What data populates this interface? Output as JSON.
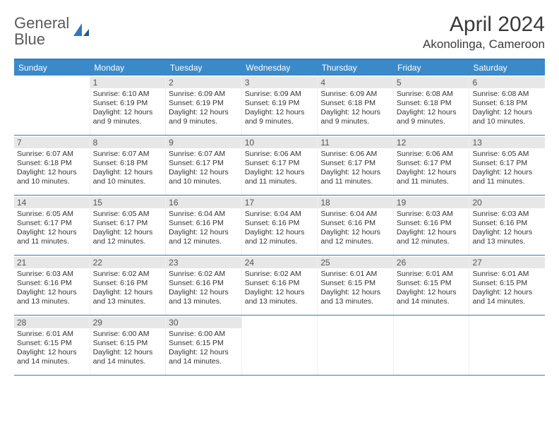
{
  "logo": {
    "text1": "General",
    "text2": "Blue"
  },
  "title": "April 2024",
  "location": "Akonolinga, Cameroon",
  "colors": {
    "header_bar": "#3a8ac9",
    "rule": "#2f78c4",
    "daynum_bg": "#e7e7e7",
    "text": "#333333"
  },
  "weekdays": [
    "Sunday",
    "Monday",
    "Tuesday",
    "Wednesday",
    "Thursday",
    "Friday",
    "Saturday"
  ],
  "weeks": [
    [
      {
        "n": "",
        "sr": "",
        "ss": "",
        "dl": ""
      },
      {
        "n": "1",
        "sr": "Sunrise: 6:10 AM",
        "ss": "Sunset: 6:19 PM",
        "dl": "Daylight: 12 hours and 9 minutes."
      },
      {
        "n": "2",
        "sr": "Sunrise: 6:09 AM",
        "ss": "Sunset: 6:19 PM",
        "dl": "Daylight: 12 hours and 9 minutes."
      },
      {
        "n": "3",
        "sr": "Sunrise: 6:09 AM",
        "ss": "Sunset: 6:19 PM",
        "dl": "Daylight: 12 hours and 9 minutes."
      },
      {
        "n": "4",
        "sr": "Sunrise: 6:09 AM",
        "ss": "Sunset: 6:18 PM",
        "dl": "Daylight: 12 hours and 9 minutes."
      },
      {
        "n": "5",
        "sr": "Sunrise: 6:08 AM",
        "ss": "Sunset: 6:18 PM",
        "dl": "Daylight: 12 hours and 9 minutes."
      },
      {
        "n": "6",
        "sr": "Sunrise: 6:08 AM",
        "ss": "Sunset: 6:18 PM",
        "dl": "Daylight: 12 hours and 10 minutes."
      }
    ],
    [
      {
        "n": "7",
        "sr": "Sunrise: 6:07 AM",
        "ss": "Sunset: 6:18 PM",
        "dl": "Daylight: 12 hours and 10 minutes."
      },
      {
        "n": "8",
        "sr": "Sunrise: 6:07 AM",
        "ss": "Sunset: 6:18 PM",
        "dl": "Daylight: 12 hours and 10 minutes."
      },
      {
        "n": "9",
        "sr": "Sunrise: 6:07 AM",
        "ss": "Sunset: 6:17 PM",
        "dl": "Daylight: 12 hours and 10 minutes."
      },
      {
        "n": "10",
        "sr": "Sunrise: 6:06 AM",
        "ss": "Sunset: 6:17 PM",
        "dl": "Daylight: 12 hours and 11 minutes."
      },
      {
        "n": "11",
        "sr": "Sunrise: 6:06 AM",
        "ss": "Sunset: 6:17 PM",
        "dl": "Daylight: 12 hours and 11 minutes."
      },
      {
        "n": "12",
        "sr": "Sunrise: 6:06 AM",
        "ss": "Sunset: 6:17 PM",
        "dl": "Daylight: 12 hours and 11 minutes."
      },
      {
        "n": "13",
        "sr": "Sunrise: 6:05 AM",
        "ss": "Sunset: 6:17 PM",
        "dl": "Daylight: 12 hours and 11 minutes."
      }
    ],
    [
      {
        "n": "14",
        "sr": "Sunrise: 6:05 AM",
        "ss": "Sunset: 6:17 PM",
        "dl": "Daylight: 12 hours and 11 minutes."
      },
      {
        "n": "15",
        "sr": "Sunrise: 6:05 AM",
        "ss": "Sunset: 6:17 PM",
        "dl": "Daylight: 12 hours and 12 minutes."
      },
      {
        "n": "16",
        "sr": "Sunrise: 6:04 AM",
        "ss": "Sunset: 6:16 PM",
        "dl": "Daylight: 12 hours and 12 minutes."
      },
      {
        "n": "17",
        "sr": "Sunrise: 6:04 AM",
        "ss": "Sunset: 6:16 PM",
        "dl": "Daylight: 12 hours and 12 minutes."
      },
      {
        "n": "18",
        "sr": "Sunrise: 6:04 AM",
        "ss": "Sunset: 6:16 PM",
        "dl": "Daylight: 12 hours and 12 minutes."
      },
      {
        "n": "19",
        "sr": "Sunrise: 6:03 AM",
        "ss": "Sunset: 6:16 PM",
        "dl": "Daylight: 12 hours and 12 minutes."
      },
      {
        "n": "20",
        "sr": "Sunrise: 6:03 AM",
        "ss": "Sunset: 6:16 PM",
        "dl": "Daylight: 12 hours and 13 minutes."
      }
    ],
    [
      {
        "n": "21",
        "sr": "Sunrise: 6:03 AM",
        "ss": "Sunset: 6:16 PM",
        "dl": "Daylight: 12 hours and 13 minutes."
      },
      {
        "n": "22",
        "sr": "Sunrise: 6:02 AM",
        "ss": "Sunset: 6:16 PM",
        "dl": "Daylight: 12 hours and 13 minutes."
      },
      {
        "n": "23",
        "sr": "Sunrise: 6:02 AM",
        "ss": "Sunset: 6:16 PM",
        "dl": "Daylight: 12 hours and 13 minutes."
      },
      {
        "n": "24",
        "sr": "Sunrise: 6:02 AM",
        "ss": "Sunset: 6:16 PM",
        "dl": "Daylight: 12 hours and 13 minutes."
      },
      {
        "n": "25",
        "sr": "Sunrise: 6:01 AM",
        "ss": "Sunset: 6:15 PM",
        "dl": "Daylight: 12 hours and 13 minutes."
      },
      {
        "n": "26",
        "sr": "Sunrise: 6:01 AM",
        "ss": "Sunset: 6:15 PM",
        "dl": "Daylight: 12 hours and 14 minutes."
      },
      {
        "n": "27",
        "sr": "Sunrise: 6:01 AM",
        "ss": "Sunset: 6:15 PM",
        "dl": "Daylight: 12 hours and 14 minutes."
      }
    ],
    [
      {
        "n": "28",
        "sr": "Sunrise: 6:01 AM",
        "ss": "Sunset: 6:15 PM",
        "dl": "Daylight: 12 hours and 14 minutes."
      },
      {
        "n": "29",
        "sr": "Sunrise: 6:00 AM",
        "ss": "Sunset: 6:15 PM",
        "dl": "Daylight: 12 hours and 14 minutes."
      },
      {
        "n": "30",
        "sr": "Sunrise: 6:00 AM",
        "ss": "Sunset: 6:15 PM",
        "dl": "Daylight: 12 hours and 14 minutes."
      },
      {
        "n": "",
        "sr": "",
        "ss": "",
        "dl": ""
      },
      {
        "n": "",
        "sr": "",
        "ss": "",
        "dl": ""
      },
      {
        "n": "",
        "sr": "",
        "ss": "",
        "dl": ""
      },
      {
        "n": "",
        "sr": "",
        "ss": "",
        "dl": ""
      }
    ]
  ]
}
